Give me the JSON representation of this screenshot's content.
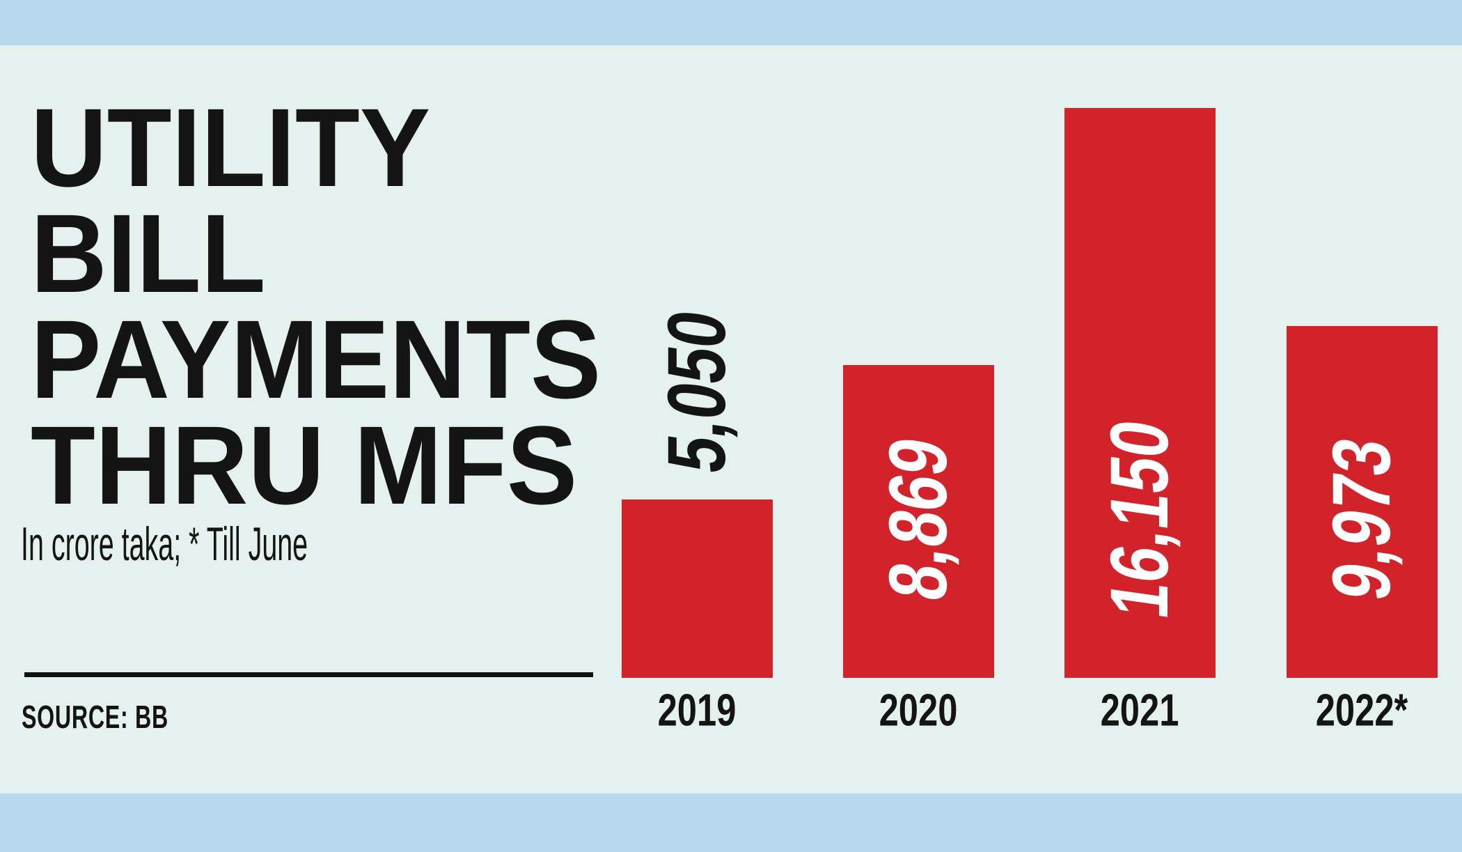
{
  "infographic": {
    "subtitle": "In crore taka; * Till June",
    "source_label": "SOURCE: BB"
  },
  "chart_data": {
    "type": "bar",
    "title": "UTILITY BILL PAYMENTS THRU MFS",
    "title_lines": [
      "UTILITY",
      "BILL",
      "PAYMENTS",
      "THRU MFS"
    ],
    "subtitle": "In crore taka; * Till June",
    "source": "SOURCE: BB",
    "categories": [
      "2019",
      "2020",
      "2021",
      "2022*"
    ],
    "values": [
      5050,
      8869,
      16150,
      9973
    ],
    "value_labels": [
      "5,050",
      "8,869",
      "16,150",
      "9,973"
    ],
    "unit": "crore taka",
    "note": "* Till June",
    "ylim": [
      0,
      16150
    ],
    "grid": false,
    "legend": false,
    "value_label_placement": [
      "above-bar",
      "inside-bar",
      "inside-bar",
      "inside-bar"
    ],
    "colors": {
      "bar": "#d2232b",
      "value_label_outside": "#141414",
      "value_label_inside": "#ffffff",
      "background": "#e4f1ee",
      "band": "#b7d8ef",
      "text": "#141414"
    }
  }
}
